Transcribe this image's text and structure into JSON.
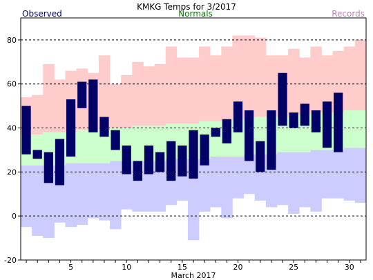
{
  "chart_data": {
    "type": "bar",
    "title": "KMKG Temps for 3/2017",
    "xlabel": "March 2017",
    "legend": {
      "observed": "Observed",
      "normals": "Normals",
      "records": "Records",
      "placement": "top"
    },
    "colors": {
      "observed": "#000066",
      "normals_band": "#ccffcc",
      "records_high_band": "#ffcccc",
      "records_low_band": "#ccccff",
      "observed_label": "#000080",
      "normals_label": "#008000",
      "records_label": "#c080c0"
    },
    "x_ticks": [
      5,
      10,
      15,
      20,
      25,
      30
    ],
    "y_ticks": [
      -20,
      0,
      20,
      40,
      60,
      80
    ],
    "xlim": [
      0.5,
      31.5
    ],
    "ylim": [
      -20,
      90
    ],
    "grid": "dashed horizontal",
    "days": [
      1,
      2,
      3,
      4,
      5,
      6,
      7,
      8,
      9,
      10,
      11,
      12,
      13,
      14,
      15,
      16,
      17,
      18,
      19,
      20,
      21,
      22,
      23,
      24,
      25,
      26,
      27,
      28,
      29,
      30,
      31
    ],
    "series": [
      {
        "name": "Observed",
        "high": [
          50,
          30,
          29,
          35,
          53,
          61,
          62,
          45,
          39,
          32,
          25,
          32,
          29,
          34,
          32,
          39,
          37,
          40,
          44,
          52,
          48,
          34,
          48,
          65,
          47,
          51,
          48,
          52,
          56,
          null,
          null
        ],
        "low": [
          28,
          26,
          15,
          14,
          27,
          49,
          38,
          36,
          30,
          19,
          16,
          19,
          20,
          16,
          18,
          17,
          23,
          36,
          33,
          38,
          25,
          20,
          21,
          41,
          40,
          41,
          38,
          31,
          29,
          null,
          null
        ]
      },
      {
        "name": "Normals",
        "high": [
          37,
          37,
          38,
          38,
          38,
          39,
          39,
          39,
          40,
          40,
          41,
          41,
          41,
          42,
          42,
          42,
          43,
          43,
          43,
          44,
          44,
          45,
          45,
          45,
          46,
          46,
          47,
          47,
          47,
          48,
          48
        ],
        "low": [
          23,
          23,
          23,
          23,
          24,
          24,
          24,
          24,
          25,
          25,
          25,
          25,
          25,
          26,
          26,
          26,
          26,
          27,
          27,
          27,
          28,
          28,
          28,
          29,
          29,
          29,
          30,
          30,
          30,
          31,
          31
        ]
      },
      {
        "name": "Records",
        "high": [
          54,
          55,
          69,
          62,
          66,
          67,
          65,
          73,
          60,
          64,
          70,
          68,
          69,
          77,
          72,
          72,
          77,
          73,
          77,
          82,
          82,
          81,
          73,
          73,
          76,
          72,
          77,
          73,
          75,
          77,
          80
        ],
        "low": [
          -5,
          -9,
          -10,
          -3,
          -5,
          -4,
          -1,
          -2,
          -6,
          3,
          2,
          2,
          2,
          5,
          7,
          -11,
          2,
          4,
          -1,
          8,
          10,
          7,
          4,
          5,
          1,
          4,
          2,
          8,
          8,
          7,
          6
        ]
      }
    ]
  }
}
